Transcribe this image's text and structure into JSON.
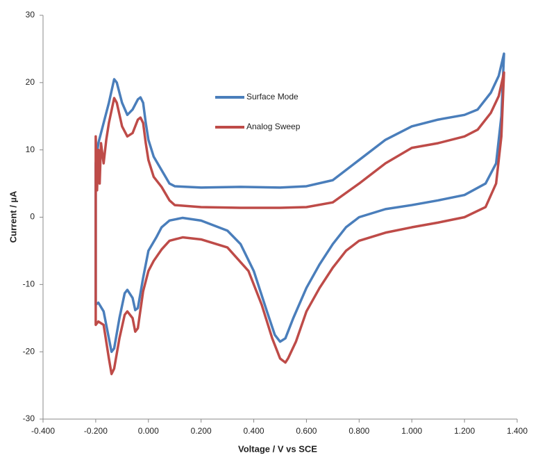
{
  "chart_data": {
    "type": "line",
    "xlabel": "Voltage / V vs SCE",
    "ylabel": "Current / µA",
    "xlim": [
      -0.4,
      1.4
    ],
    "xticks": [
      {
        "value": -0.4,
        "label": "-0.400"
      },
      {
        "value": -0.2,
        "label": "-0.200"
      },
      {
        "value": 0,
        "label": "0.000"
      },
      {
        "value": 0.2,
        "label": "0.200"
      },
      {
        "value": 0.4,
        "label": "0.400"
      },
      {
        "value": 0.6,
        "label": "0.600"
      },
      {
        "value": 0.8,
        "label": "0.800"
      },
      {
        "value": 1.0,
        "label": "1.000"
      },
      {
        "value": 1.2,
        "label": "1.200"
      },
      {
        "value": 1.4,
        "label": "1.400"
      }
    ],
    "ylim": [
      -30,
      30
    ],
    "yticks": [
      30,
      20,
      10,
      0,
      -10,
      -20,
      -30
    ],
    "grid": false,
    "series": [
      {
        "name": "Surface Mode",
        "color": "#4a7ebb",
        "x": [
          -0.2,
          -0.19,
          -0.17,
          -0.15,
          -0.13,
          -0.12,
          -0.1,
          -0.08,
          -0.06,
          -0.04,
          -0.03,
          -0.02,
          -0.01,
          0,
          0.02,
          0.05,
          0.08,
          0.1,
          0.2,
          0.35,
          0.5,
          0.6,
          0.7,
          0.8,
          0.9,
          1.0,
          1.1,
          1.2,
          1.25,
          1.3,
          1.33,
          1.35,
          1.34,
          1.32,
          1.28,
          1.2,
          1.1,
          1.0,
          0.9,
          0.8,
          0.75,
          0.7,
          0.65,
          0.6,
          0.55,
          0.52,
          0.5,
          0.48,
          0.45,
          0.4,
          0.35,
          0.3,
          0.2,
          0.13,
          0.08,
          0.05,
          0.03,
          0,
          -0.02,
          -0.04,
          -0.05,
          -0.06,
          -0.08,
          -0.09,
          -0.11,
          -0.13,
          -0.14,
          -0.15,
          -0.17,
          -0.19,
          -0.2,
          -0.2
        ],
        "values": [
          8,
          11,
          14,
          17,
          20.5,
          20,
          17,
          15.2,
          16,
          17.5,
          17.8,
          17,
          14,
          11.5,
          9,
          7,
          5,
          4.6,
          4.4,
          4.5,
          4.4,
          4.6,
          5.5,
          8.5,
          11.5,
          13.5,
          14.5,
          15.2,
          16,
          18.5,
          21,
          24.3,
          15,
          8,
          5,
          3.3,
          2.5,
          1.8,
          1.2,
          0,
          -1.5,
          -4,
          -7,
          -10.5,
          -15,
          -18,
          -18.5,
          -17.5,
          -14,
          -8,
          -4,
          -2,
          -0.5,
          -0.1,
          -0.5,
          -1.5,
          -3,
          -5,
          -9,
          -13.5,
          -13.8,
          -12,
          -10.8,
          -11.3,
          -15,
          -19.5,
          -20,
          -18,
          -14,
          -12.7,
          -13,
          8
        ]
      },
      {
        "name": "Analog Sweep",
        "color": "#be4b48",
        "x": [
          -0.2,
          -0.195,
          -0.19,
          -0.185,
          -0.18,
          -0.17,
          -0.16,
          -0.15,
          -0.13,
          -0.12,
          -0.1,
          -0.08,
          -0.06,
          -0.04,
          -0.03,
          -0.02,
          -0.01,
          0,
          0.02,
          0.05,
          0.08,
          0.1,
          0.2,
          0.35,
          0.5,
          0.6,
          0.7,
          0.8,
          0.9,
          1.0,
          1.1,
          1.2,
          1.25,
          1.3,
          1.33,
          1.35,
          1.34,
          1.32,
          1.28,
          1.2,
          1.1,
          1.0,
          0.9,
          0.8,
          0.75,
          0.7,
          0.65,
          0.6,
          0.56,
          0.53,
          0.52,
          0.5,
          0.47,
          0.43,
          0.38,
          0.3,
          0.2,
          0.13,
          0.08,
          0.05,
          0.02,
          0,
          -0.02,
          -0.04,
          -0.05,
          -0.06,
          -0.08,
          -0.09,
          -0.11,
          -0.13,
          -0.14,
          -0.15,
          -0.17,
          -0.19,
          -0.2,
          -0.2
        ],
        "values": [
          12,
          4,
          10,
          5,
          11,
          8,
          11.5,
          14,
          17.7,
          17,
          13.5,
          12,
          12.5,
          14.5,
          14.8,
          14,
          11,
          8.5,
          6,
          4.5,
          2.5,
          1.8,
          1.5,
          1.4,
          1.4,
          1.5,
          2.2,
          5,
          8,
          10.3,
          11,
          12,
          13,
          15.5,
          18,
          21.5,
          12,
          5,
          1.5,
          0,
          -0.8,
          -1.5,
          -2.3,
          -3.5,
          -5,
          -7.5,
          -10.5,
          -14,
          -18.5,
          -21,
          -21.6,
          -21,
          -18,
          -13,
          -8,
          -4.5,
          -3.3,
          -3,
          -3.5,
          -4.8,
          -6.5,
          -8,
          -11,
          -16.5,
          -17,
          -15,
          -14,
          -14.5,
          -18,
          -22.5,
          -23.3,
          -21,
          -16,
          -15.5,
          -16,
          12
        ]
      }
    ]
  }
}
